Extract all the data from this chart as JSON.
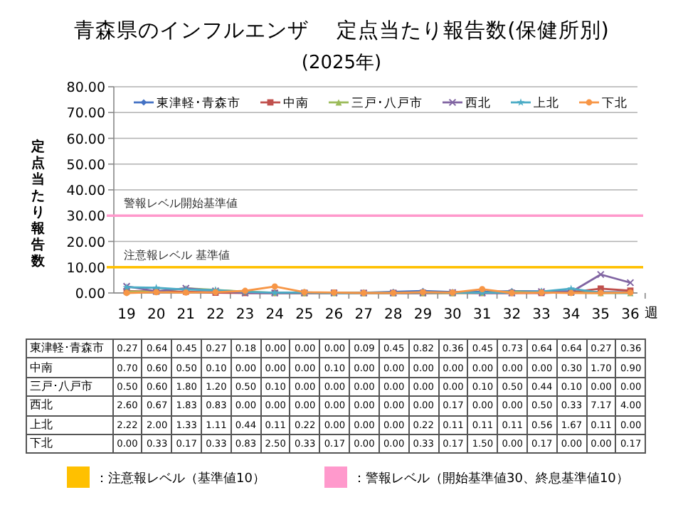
{
  "chart_data": {
    "type": "line",
    "title": "青森県のインフルエンザ　 定点当たり報告数(保健所別)",
    "subtitle": "(2025年)",
    "xlabel": "週",
    "ylabel": "定点当たり報告数",
    "categories": [
      "19",
      "20",
      "21",
      "22",
      "23",
      "24",
      "25",
      "26",
      "27",
      "28",
      "29",
      "30",
      "31",
      "32",
      "33",
      "34",
      "35",
      "36"
    ],
    "series": [
      {
        "name": "東津軽･青森市",
        "color": "#4472c4",
        "marker": "diamond",
        "values": [
          0.27,
          0.64,
          0.45,
          0.27,
          0.18,
          0.0,
          0.0,
          0.0,
          0.09,
          0.45,
          0.82,
          0.36,
          0.45,
          0.73,
          0.64,
          0.64,
          0.27,
          0.36
        ],
        "value_labels": [
          "0.27",
          "0.64",
          "0.45",
          "0.27",
          "0.18",
          "0.00",
          "0.00",
          "0.00",
          "0.09",
          "0.45",
          "0.82",
          "0.36",
          "0.45",
          "0.73",
          "0.64",
          "0.64",
          "0.27",
          "0.36"
        ]
      },
      {
        "name": "中南",
        "color": "#c0504d",
        "marker": "square",
        "values": [
          0.7,
          0.6,
          0.5,
          0.1,
          0.0,
          0.0,
          0.0,
          0.1,
          0.0,
          0.0,
          0.0,
          0.0,
          0.0,
          0.0,
          0.0,
          0.3,
          1.7,
          0.9
        ],
        "value_labels": [
          "0.70",
          "0.60",
          "0.50",
          "0.10",
          "0.00",
          "0.00",
          "0.00",
          "0.10",
          "0.00",
          "0.00",
          "0.00",
          "0.00",
          "0.00",
          "0.00",
          "0.00",
          "0.30",
          "1.70",
          "0.90"
        ]
      },
      {
        "name": "三戸･八戸市",
        "color": "#9bbb59",
        "marker": "triangle",
        "values": [
          0.5,
          0.6,
          1.8,
          1.2,
          0.5,
          0.1,
          0.0,
          0.0,
          0.0,
          0.0,
          0.0,
          0.0,
          0.1,
          0.5,
          0.44,
          0.1,
          0.0,
          0.0
        ],
        "value_labels": [
          "0.50",
          "0.60",
          "1.80",
          "1.20",
          "0.50",
          "0.10",
          "0.00",
          "0.00",
          "0.00",
          "0.00",
          "0.00",
          "0.00",
          "0.10",
          "0.50",
          "0.44",
          "0.10",
          "0.00",
          "0.00"
        ]
      },
      {
        "name": "西北",
        "color": "#8064a2",
        "marker": "cross",
        "values": [
          2.6,
          0.67,
          1.83,
          0.83,
          0.0,
          0.0,
          0.0,
          0.0,
          0.0,
          0.0,
          0.0,
          0.17,
          0.0,
          0.0,
          0.5,
          0.33,
          7.17,
          4.0
        ],
        "value_labels": [
          "2.60",
          "0.67",
          "1.83",
          "0.83",
          "0.00",
          "0.00",
          "0.00",
          "0.00",
          "0.00",
          "0.00",
          "0.00",
          "0.17",
          "0.00",
          "0.00",
          "0.50",
          "0.33",
          "7.17",
          "4.00"
        ]
      },
      {
        "name": "上北",
        "color": "#4bacc6",
        "marker": "star",
        "values": [
          2.22,
          2.0,
          1.33,
          1.11,
          0.44,
          0.11,
          0.22,
          0.0,
          0.0,
          0.0,
          0.22,
          0.11,
          0.11,
          0.11,
          0.56,
          1.67,
          0.11,
          0.0
        ],
        "value_labels": [
          "2.22",
          "2.00",
          "1.33",
          "1.11",
          "0.44",
          "0.11",
          "0.22",
          "0.00",
          "0.00",
          "0.00",
          "0.22",
          "0.11",
          "0.11",
          "0.11",
          "0.56",
          "1.67",
          "0.11",
          "0.00"
        ]
      },
      {
        "name": "下北",
        "color": "#f79646",
        "marker": "circle",
        "values": [
          0.0,
          0.33,
          0.17,
          0.33,
          0.83,
          2.5,
          0.33,
          0.17,
          0.0,
          0.0,
          0.33,
          0.17,
          1.5,
          0.0,
          0.17,
          0.0,
          0.0,
          0.17
        ],
        "value_labels": [
          "0.00",
          "0.33",
          "0.17",
          "0.33",
          "0.83",
          "2.50",
          "0.33",
          "0.17",
          "0.00",
          "0.00",
          "0.33",
          "0.17",
          "1.50",
          "0.00",
          "0.17",
          "0.00",
          "0.00",
          "0.17"
        ]
      }
    ],
    "ylim": [
      0,
      80
    ],
    "yticks": [
      {
        "value": 0,
        "label": "0.00"
      },
      {
        "value": 10,
        "label": "10.00"
      },
      {
        "value": 20,
        "label": "20.00"
      },
      {
        "value": 30,
        "label": "30.00"
      },
      {
        "value": 40,
        "label": "40.00"
      },
      {
        "value": 50,
        "label": "50.00"
      },
      {
        "value": 60,
        "label": "60.00"
      },
      {
        "value": 70,
        "label": "70.00"
      },
      {
        "value": 80,
        "label": "80.00"
      }
    ],
    "grid": "y",
    "legend": "top",
    "ref_lines": [
      {
        "axis": "y",
        "value": 30,
        "label": "警報レベル開始基準値",
        "color": "#ff99cc"
      },
      {
        "axis": "y",
        "value": 10,
        "label": "注意報レベル 基準値",
        "color": "#ffc000"
      }
    ],
    "annotations": [
      "：注意報レベル（基準値10）",
      "：警報レベル（開始基準値30、終息基準値10）"
    ]
  }
}
